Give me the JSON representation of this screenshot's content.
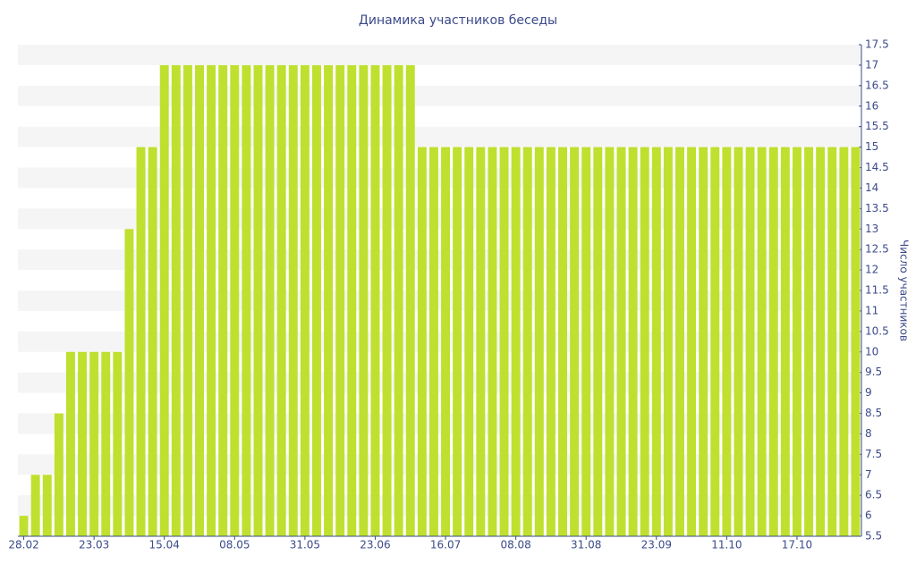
{
  "chart_data": {
    "type": "bar",
    "title": "Динамика участников беседы",
    "y_label": "Число участников",
    "categories": [
      "28.02",
      null,
      null,
      null,
      null,
      null,
      "23.03",
      null,
      null,
      null,
      null,
      null,
      "15.04",
      null,
      null,
      null,
      null,
      null,
      "08.05",
      null,
      null,
      null,
      null,
      null,
      "31.05",
      null,
      null,
      null,
      null,
      null,
      "23.06",
      null,
      null,
      null,
      null,
      null,
      "16.07",
      null,
      null,
      null,
      null,
      null,
      "08.08",
      null,
      null,
      null,
      null,
      null,
      "31.08",
      null,
      null,
      null,
      null,
      null,
      "23.09",
      null,
      null,
      null,
      null,
      null,
      "11.10",
      null,
      null,
      null,
      null,
      null,
      "17.10",
      null,
      null,
      null,
      null,
      null
    ],
    "values": [
      6,
      7,
      7,
      8.5,
      10,
      10,
      10,
      10,
      10,
      13,
      15,
      15,
      17,
      17,
      17,
      17,
      17,
      17,
      17,
      17,
      17,
      17,
      17,
      17,
      17,
      17,
      17,
      17,
      17,
      17,
      17,
      17,
      17,
      17,
      15,
      15,
      15,
      15,
      15,
      15,
      15,
      15,
      15,
      15,
      15,
      15,
      15,
      15,
      15,
      15,
      15,
      15,
      15,
      15,
      15,
      15,
      15,
      15,
      15,
      15,
      15,
      15,
      15,
      15,
      15,
      15,
      15,
      15,
      15,
      15,
      15,
      15
    ],
    "color": "#bfe02f",
    "ylim": [
      5.5,
      17.5
    ],
    "yticks": [
      5.5,
      6,
      6.5,
      7,
      7.5,
      8,
      8.5,
      9,
      9.5,
      10,
      10.5,
      11,
      11.5,
      12,
      12.5,
      13,
      13.5,
      14,
      14.5,
      15,
      15.5,
      16,
      16.5,
      17,
      17.5
    ],
    "y_axis_side": "right",
    "grid": "bands"
  }
}
